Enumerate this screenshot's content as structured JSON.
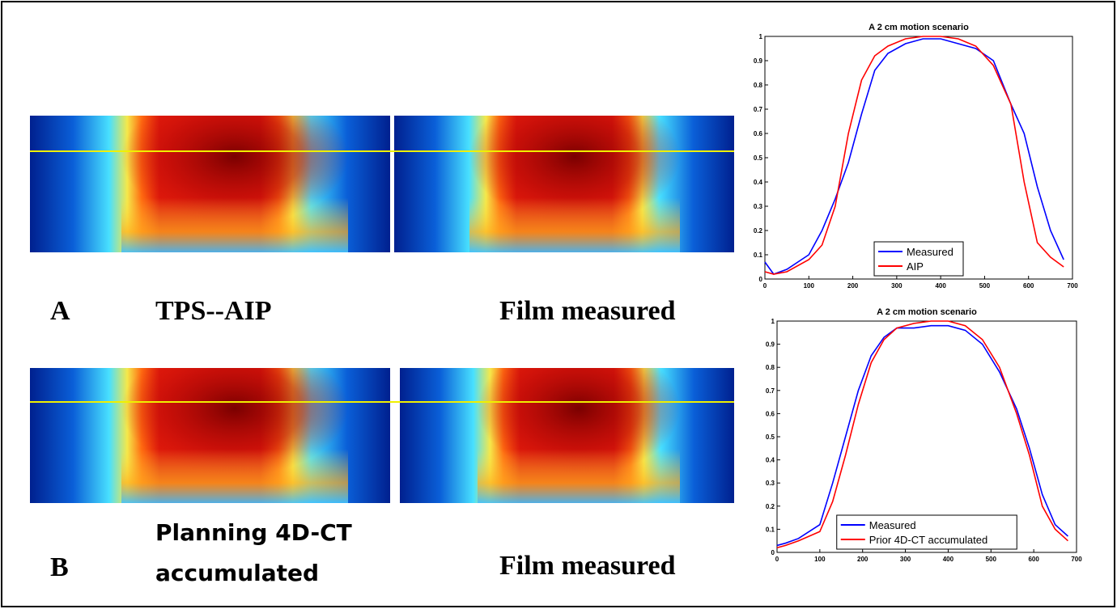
{
  "panels": {
    "a": {
      "letter": "A",
      "left_label": "TPS--AIP",
      "right_label": "Film measured"
    },
    "b": {
      "letter": "B",
      "left_label": [
        "Planning 4D-CT",
        "accumulated"
      ],
      "right_label": "Film measured"
    }
  },
  "chart_data": [
    {
      "type": "line",
      "title": "A 2 cm motion scenario",
      "x": [
        0,
        20,
        50,
        100,
        130,
        160,
        190,
        220,
        250,
        280,
        320,
        360,
        400,
        440,
        480,
        520,
        560,
        590,
        620,
        650,
        680
      ],
      "series": [
        {
          "name": "Measured",
          "color": "#0000ff",
          "values": [
            0.07,
            0.02,
            0.04,
            0.1,
            0.2,
            0.33,
            0.48,
            0.68,
            0.86,
            0.93,
            0.97,
            0.99,
            0.99,
            0.97,
            0.95,
            0.9,
            0.72,
            0.6,
            0.38,
            0.2,
            0.08
          ]
        },
        {
          "name": "AIP",
          "color": "#ff0000",
          "values": [
            0.03,
            0.02,
            0.03,
            0.08,
            0.14,
            0.3,
            0.6,
            0.82,
            0.92,
            0.96,
            0.99,
            1.0,
            1.0,
            0.99,
            0.96,
            0.88,
            0.72,
            0.4,
            0.15,
            0.09,
            0.05
          ]
        }
      ],
      "xlim": [
        0,
        700
      ],
      "xticks": [
        0,
        100,
        200,
        300,
        400,
        500,
        600,
        700
      ],
      "ylim": [
        0,
        1
      ],
      "yticks": [
        0,
        0.1,
        0.2,
        0.3,
        0.4,
        0.5,
        0.6,
        0.7,
        0.8,
        0.9,
        1
      ],
      "legend": "lower center"
    },
    {
      "type": "line",
      "title": "A 2 cm motion scenario",
      "x": [
        0,
        20,
        50,
        100,
        130,
        160,
        190,
        220,
        250,
        280,
        320,
        360,
        400,
        440,
        480,
        520,
        560,
        590,
        620,
        650,
        680
      ],
      "series": [
        {
          "name": "Measured",
          "color": "#0000ff",
          "values": [
            0.03,
            0.04,
            0.06,
            0.12,
            0.3,
            0.5,
            0.7,
            0.85,
            0.93,
            0.97,
            0.97,
            0.98,
            0.98,
            0.96,
            0.9,
            0.78,
            0.62,
            0.45,
            0.25,
            0.12,
            0.07
          ]
        },
        {
          "name": "Prior 4D-CT accumulated",
          "color": "#ff0000",
          "values": [
            0.02,
            0.03,
            0.05,
            0.09,
            0.22,
            0.42,
            0.64,
            0.82,
            0.92,
            0.97,
            0.99,
            1.0,
            1.0,
            0.98,
            0.92,
            0.8,
            0.6,
            0.42,
            0.2,
            0.1,
            0.05
          ]
        }
      ],
      "xlim": [
        0,
        700
      ],
      "xticks": [
        0,
        100,
        200,
        300,
        400,
        500,
        600,
        700
      ],
      "ylim": [
        0,
        1
      ],
      "yticks": [
        0,
        0.1,
        0.2,
        0.3,
        0.4,
        0.5,
        0.6,
        0.7,
        0.8,
        0.9,
        1
      ],
      "legend": "lower center"
    }
  ]
}
